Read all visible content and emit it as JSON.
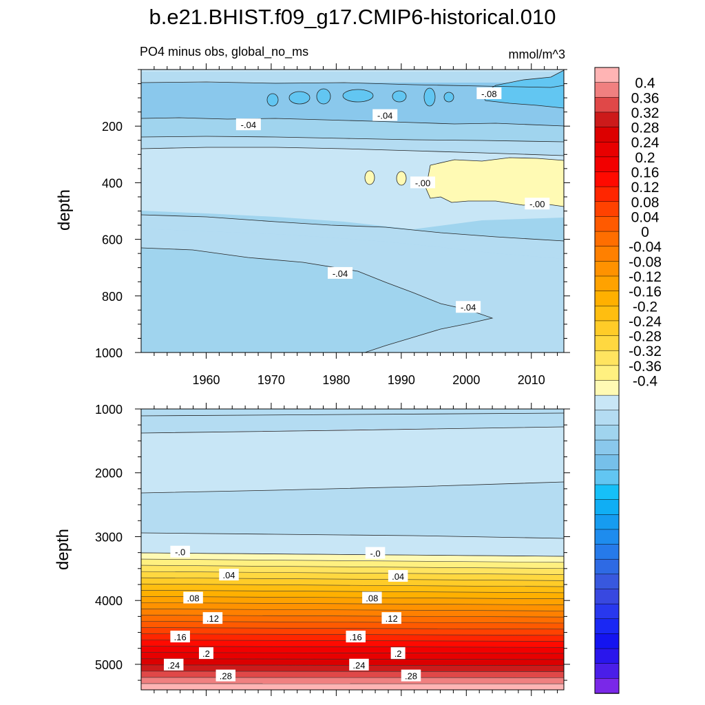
{
  "title": "b.e21.BHIST.f09_g17.CMIP6-historical.010",
  "panel_subtitle_left": "PO4 minus obs, global_no_ms",
  "panel_subtitle_right": "mmol/m^3",
  "colorbar": {
    "tick_labels": [
      "0.4",
      "0.36",
      "0.32",
      "0.28",
      "0.24",
      "0.2",
      "0.16",
      "0.12",
      "0.08",
      "0.04",
      "0",
      "-0.04",
      "-0.08",
      "-0.12",
      "-0.16",
      "-0.2",
      "-0.24",
      "-0.28",
      "-0.32",
      "-0.36",
      "-0.4"
    ],
    "colors_top_to_bottom": [
      "#ffb4b4",
      "#f08080",
      "#e04848",
      "#cc1a1a",
      "#dc0000",
      "#e80000",
      "#f20000",
      "#ff0a00",
      "#ff2600",
      "#ff4200",
      "#ff5a00",
      "#ff6e00",
      "#ff8000",
      "#ff9200",
      "#ffa200",
      "#ffb000",
      "#ffbe10",
      "#ffcc28",
      "#ffd840",
      "#ffe460",
      "#fff080",
      "#fffab4",
      "#c8e6f6",
      "#b4dcf2",
      "#a0d4ee",
      "#8ac8ec",
      "#76c0ea",
      "#62c6f2",
      "#16c0f8",
      "#10aef4",
      "#169cf0",
      "#1e8cee",
      "#267aea",
      "#2e6ae4",
      "#3858de",
      "#3848e0",
      "#2838ee",
      "#1a28f4",
      "#1414f0",
      "#2a16ec",
      "#4a1ee8",
      "#7a28e8"
    ]
  },
  "chart_data": [
    {
      "type": "contour",
      "panel": "top",
      "x_ticks": [
        "1960",
        "1970",
        "1980",
        "1990",
        "2000",
        "2010"
      ],
      "xlim": [
        1950,
        2015
      ],
      "ylabel": "depth",
      "y_ticks": [
        "200",
        "400",
        "600",
        "800",
        "1000"
      ],
      "ylim": [
        1000,
        0
      ],
      "y_reversed": true,
      "contour_labels": [
        {
          "text": "-.08",
          "x": 2003.5,
          "y": 85
        },
        {
          "text": "-.04",
          "x": 1966.5,
          "y": 195
        },
        {
          "text": "-.04",
          "x": 1987.5,
          "y": 162
        },
        {
          "text": "-.00",
          "x": 1993.3,
          "y": 400
        },
        {
          "text": "-.00",
          "x": 2010.9,
          "y": 475
        },
        {
          "text": "-.04",
          "x": 1980.6,
          "y": 720
        },
        {
          "text": "-.04",
          "x": 2000.3,
          "y": 840
        }
      ]
    },
    {
      "type": "contour",
      "panel": "bottom",
      "ylabel": "depth",
      "y_ticks": [
        "1000",
        "2000",
        "3000",
        "4000",
        "5000"
      ],
      "ylim": [
        5400,
        1000
      ],
      "y_reversed": true,
      "xlim": [
        1950,
        2015
      ],
      "contour_labels": [
        {
          "text": "-.0",
          "x": 1956.0,
          "y": 3240
        },
        {
          "text": "-.0",
          "x": 1986.0,
          "y": 3260
        },
        {
          "text": ".04",
          "x": 1963.5,
          "y": 3600
        },
        {
          "text": ".04",
          "x": 1989.5,
          "y": 3620
        },
        {
          "text": ".08",
          "x": 1958.0,
          "y": 3960
        },
        {
          "text": ".08",
          "x": 1985.5,
          "y": 3960
        },
        {
          "text": ".12",
          "x": 1961.0,
          "y": 4280
        },
        {
          "text": ".12",
          "x": 1988.5,
          "y": 4280
        },
        {
          "text": ".16",
          "x": 1956.0,
          "y": 4570
        },
        {
          "text": ".16",
          "x": 1983.0,
          "y": 4570
        },
        {
          "text": ".2",
          "x": 1960.0,
          "y": 4830
        },
        {
          "text": ".2",
          "x": 1989.5,
          "y": 4830
        },
        {
          "text": ".24",
          "x": 1955.0,
          "y": 5010
        },
        {
          "text": ".24",
          "x": 1983.5,
          "y": 5010
        },
        {
          "text": ".28",
          "x": 1963.0,
          "y": 5180
        },
        {
          "text": ".28",
          "x": 1991.5,
          "y": 5180
        }
      ]
    }
  ]
}
